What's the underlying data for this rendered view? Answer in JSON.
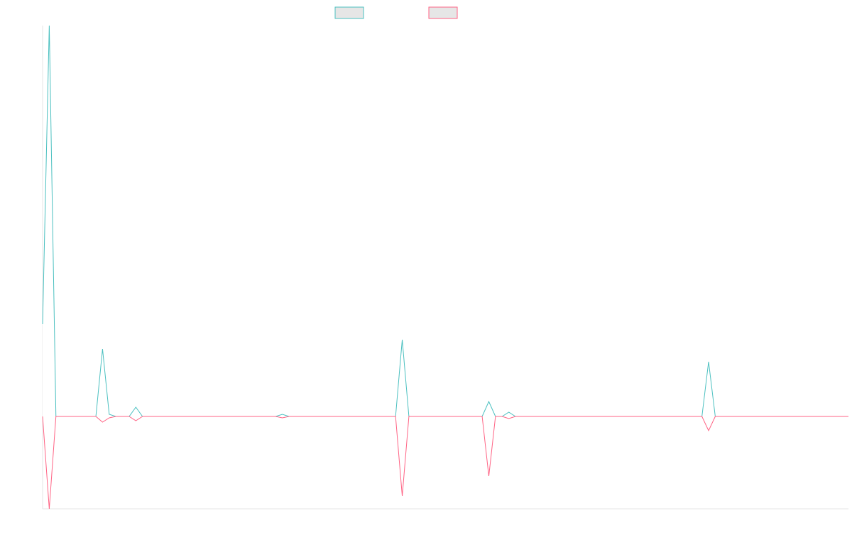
{
  "chart_data": {
    "type": "line",
    "title": "",
    "xlabel": "",
    "ylabel": "",
    "x": [
      0,
      1,
      2,
      3,
      4,
      5,
      6,
      7,
      8,
      9,
      10,
      11,
      12,
      13,
      14,
      15,
      16,
      17,
      18,
      19,
      20,
      21,
      22,
      23,
      24,
      25,
      26,
      27,
      28,
      29,
      30,
      31,
      32,
      33,
      34,
      35,
      36,
      37,
      38,
      39,
      40,
      41,
      42,
      43,
      44,
      45,
      46,
      47,
      48,
      49,
      50,
      51,
      52,
      53,
      54,
      55,
      56,
      57,
      58,
      59,
      60,
      61,
      62,
      63,
      64,
      65,
      66,
      67,
      68,
      69,
      70,
      71,
      72,
      73,
      74,
      75,
      76,
      77,
      78,
      79,
      80,
      81,
      82,
      83,
      84,
      85,
      86,
      87,
      88,
      89,
      90,
      91,
      92,
      93,
      94,
      95,
      96,
      97,
      98,
      99,
      100,
      101,
      102,
      103,
      104,
      105,
      106,
      107,
      108,
      109,
      110,
      111,
      112,
      113,
      114,
      115,
      116,
      117,
      118,
      119,
      120,
      121
    ],
    "ylim": [
      -130,
      550
    ],
    "grid": false,
    "legend_position": "top-center",
    "series": [
      {
        "color": "#4bc0c0",
        "fill": "rgba(0,0,0,0.1)",
        "values": [
          130,
          550,
          0,
          0,
          0,
          0,
          0,
          0,
          0,
          95,
          3,
          0,
          0,
          0,
          13,
          0,
          0,
          0,
          0,
          0,
          0,
          0,
          0,
          0,
          0,
          0,
          0,
          0,
          0,
          0,
          0,
          0,
          0,
          0,
          0,
          0,
          3,
          0,
          0,
          0,
          0,
          0,
          0,
          0,
          0,
          0,
          0,
          0,
          0,
          0,
          0,
          0,
          0,
          0,
          108,
          0,
          0,
          0,
          0,
          0,
          0,
          0,
          0,
          0,
          0,
          0,
          0,
          21,
          0,
          0,
          6,
          0,
          0,
          0,
          0,
          0,
          0,
          0,
          0,
          0,
          0,
          0,
          0,
          0,
          0,
          0,
          0,
          0,
          0,
          0,
          0,
          0,
          0,
          0,
          0,
          0,
          0,
          0,
          0,
          0,
          77,
          0,
          0,
          0,
          0,
          0,
          0,
          0,
          0,
          0,
          0,
          0,
          0,
          0,
          0,
          0,
          0,
          0,
          0,
          0,
          0,
          0
        ]
      },
      {
        "color": "#ff6384",
        "fill": "rgba(0,0,0,0.1)",
        "values": [
          0,
          -130,
          0,
          0,
          0,
          0,
          0,
          0,
          0,
          -8,
          -2,
          0,
          0,
          0,
          -6,
          0,
          0,
          0,
          0,
          0,
          0,
          0,
          0,
          0,
          0,
          0,
          0,
          0,
          0,
          0,
          0,
          0,
          0,
          0,
          0,
          0,
          -2,
          0,
          0,
          0,
          0,
          0,
          0,
          0,
          0,
          0,
          0,
          0,
          0,
          0,
          0,
          0,
          0,
          0,
          -112,
          0,
          0,
          0,
          0,
          0,
          0,
          0,
          0,
          0,
          0,
          0,
          0,
          -84,
          0,
          0,
          -3,
          0,
          0,
          0,
          0,
          0,
          0,
          0,
          0,
          0,
          0,
          0,
          0,
          0,
          0,
          0,
          0,
          0,
          0,
          0,
          0,
          0,
          0,
          0,
          0,
          0,
          0,
          0,
          0,
          0,
          -20,
          0,
          0,
          0,
          0,
          0,
          0,
          0,
          0,
          0,
          0,
          0,
          0,
          0,
          0,
          0,
          0,
          0,
          0,
          0,
          0,
          0
        ]
      }
    ]
  }
}
